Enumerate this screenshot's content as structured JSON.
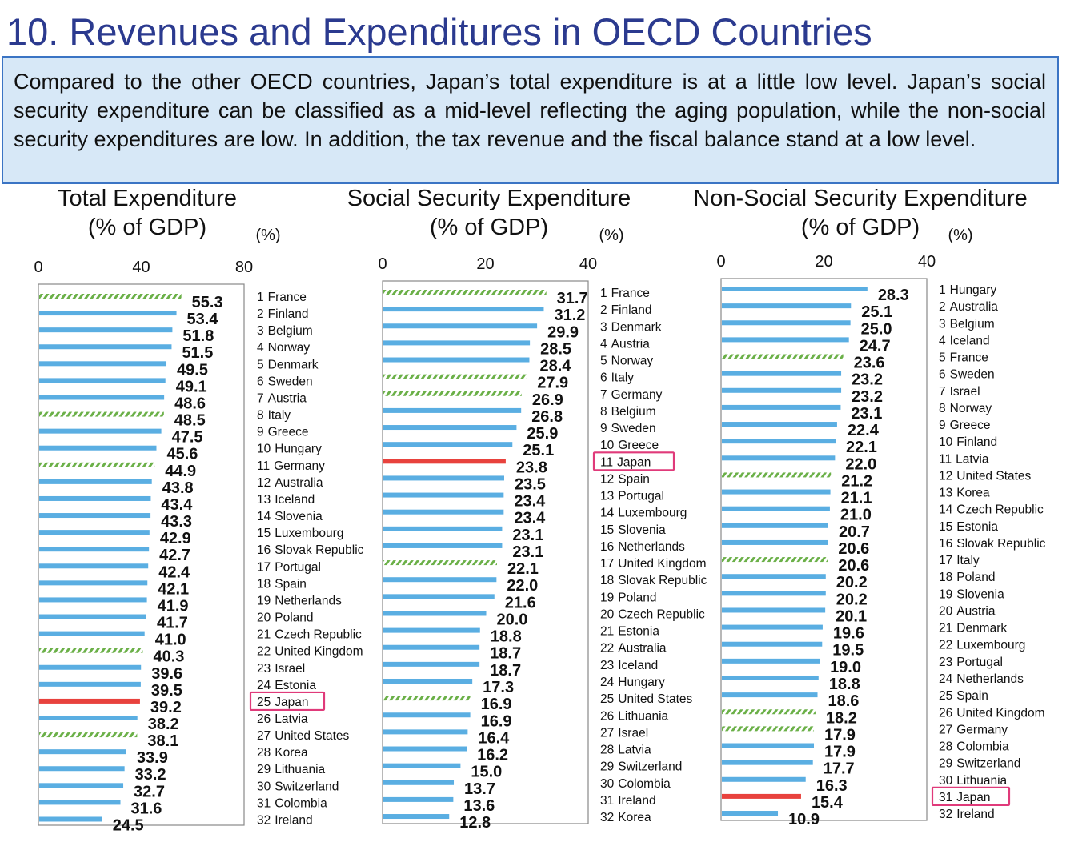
{
  "page_title": "10. Revenues and Expenditures in OECD Countries",
  "summary": "Compared to the other OECD countries, Japan’s total expenditure is at a little low level. Japan’s social security expenditure can be classified as a mid-level reflecting the aging population, while the non-social security expenditures are low. In addition, the tax revenue and the fiscal balance stand at a low level.",
  "colors": {
    "bar": "#5aaee2",
    "japan": "#e8423d",
    "hatch": "#6bb048",
    "highlight_box": "#e03a7a",
    "title": "#2b3a8f"
  },
  "chart_data": [
    {
      "type": "bar",
      "orientation": "horizontal",
      "title_line1": "Total Expenditure",
      "title_line2": "(% of GDP)",
      "unit": "(%)",
      "xlim": [
        0,
        80
      ],
      "ticks": [
        "0",
        "40",
        "80"
      ],
      "highlight": "Japan",
      "rows": [
        {
          "rank": "1",
          "country": "France",
          "value": "55.3",
          "hatched": true
        },
        {
          "rank": "2",
          "country": "Finland",
          "value": "53.4",
          "hatched": false
        },
        {
          "rank": "3",
          "country": "Belgium",
          "value": "51.8",
          "hatched": false
        },
        {
          "rank": "4",
          "country": "Norway",
          "value": "51.5",
          "hatched": false
        },
        {
          "rank": "5",
          "country": "Denmark",
          "value": "49.5",
          "hatched": false
        },
        {
          "rank": "6",
          "country": "Sweden",
          "value": "49.1",
          "hatched": false
        },
        {
          "rank": "7",
          "country": "Austria",
          "value": "48.6",
          "hatched": false
        },
        {
          "rank": "8",
          "country": "Italy",
          "value": "48.5",
          "hatched": true
        },
        {
          "rank": "9",
          "country": "Greece",
          "value": "47.5",
          "hatched": false
        },
        {
          "rank": "10",
          "country": "Hungary",
          "value": "45.6",
          "hatched": false
        },
        {
          "rank": "11",
          "country": "Germany",
          "value": "44.9",
          "hatched": true
        },
        {
          "rank": "12",
          "country": "Australia",
          "value": "43.8",
          "hatched": false
        },
        {
          "rank": "13",
          "country": "Iceland",
          "value": "43.4",
          "hatched": false
        },
        {
          "rank": "14",
          "country": "Slovenia",
          "value": "43.3",
          "hatched": false
        },
        {
          "rank": "15",
          "country": "Luxembourg",
          "value": "42.9",
          "hatched": false
        },
        {
          "rank": "16",
          "country": "Slovak Republic",
          "value": "42.7",
          "hatched": false
        },
        {
          "rank": "17",
          "country": "Portugal",
          "value": "42.4",
          "hatched": false
        },
        {
          "rank": "18",
          "country": "Spain",
          "value": "42.1",
          "hatched": false
        },
        {
          "rank": "19",
          "country": "Netherlands",
          "value": "41.9",
          "hatched": false
        },
        {
          "rank": "20",
          "country": "Poland",
          "value": "41.7",
          "hatched": false
        },
        {
          "rank": "21",
          "country": "Czech Republic",
          "value": "41.0",
          "hatched": false
        },
        {
          "rank": "22",
          "country": "United Kingdom",
          "value": "40.3",
          "hatched": true
        },
        {
          "rank": "23",
          "country": "Israel",
          "value": "39.6",
          "hatched": false
        },
        {
          "rank": "24",
          "country": "Estonia",
          "value": "39.5",
          "hatched": false
        },
        {
          "rank": "25",
          "country": "Japan",
          "value": "39.2",
          "hatched": false
        },
        {
          "rank": "26",
          "country": "Latvia",
          "value": "38.2",
          "hatched": false
        },
        {
          "rank": "27",
          "country": "United States",
          "value": "38.1",
          "hatched": true
        },
        {
          "rank": "28",
          "country": "Korea",
          "value": "33.9",
          "hatched": false
        },
        {
          "rank": "29",
          "country": "Lithuania",
          "value": "33.2",
          "hatched": false
        },
        {
          "rank": "30",
          "country": "Switzerland",
          "value": "32.7",
          "hatched": false
        },
        {
          "rank": "31",
          "country": "Colombia",
          "value": "31.6",
          "hatched": false
        },
        {
          "rank": "32",
          "country": "Ireland",
          "value": "24.5",
          "hatched": false
        }
      ]
    },
    {
      "type": "bar",
      "orientation": "horizontal",
      "title_line1": "Social Security Expenditure",
      "title_line2": "(% of GDP)",
      "unit": "(%)",
      "xlim": [
        0,
        40
      ],
      "ticks": [
        "0",
        "20",
        "40"
      ],
      "highlight": "Japan",
      "rows": [
        {
          "rank": "1",
          "country": "France",
          "value": "31.7",
          "hatched": true
        },
        {
          "rank": "2",
          "country": "Finland",
          "value": "31.2",
          "hatched": false
        },
        {
          "rank": "3",
          "country": "Denmark",
          "value": "29.9",
          "hatched": false
        },
        {
          "rank": "4",
          "country": "Austria",
          "value": "28.5",
          "hatched": false
        },
        {
          "rank": "5",
          "country": "Norway",
          "value": "28.4",
          "hatched": false
        },
        {
          "rank": "6",
          "country": "Italy",
          "value": "27.9",
          "hatched": true
        },
        {
          "rank": "7",
          "country": "Germany",
          "value": "26.9",
          "hatched": true
        },
        {
          "rank": "8",
          "country": "Belgium",
          "value": "26.8",
          "hatched": false
        },
        {
          "rank": "9",
          "country": "Sweden",
          "value": "25.9",
          "hatched": false
        },
        {
          "rank": "10",
          "country": "Greece",
          "value": "25.1",
          "hatched": false
        },
        {
          "rank": "11",
          "country": "Japan",
          "value": "23.8",
          "hatched": false
        },
        {
          "rank": "12",
          "country": "Spain",
          "value": "23.5",
          "hatched": false
        },
        {
          "rank": "13",
          "country": "Portugal",
          "value": "23.4",
          "hatched": false
        },
        {
          "rank": "14",
          "country": "Luxembourg",
          "value": "23.4",
          "hatched": false
        },
        {
          "rank": "15",
          "country": "Slovenia",
          "value": "23.1",
          "hatched": false
        },
        {
          "rank": "16",
          "country": "Netherlands",
          "value": "23.1",
          "hatched": false
        },
        {
          "rank": "17",
          "country": "United Kingdom",
          "value": "22.1",
          "hatched": true
        },
        {
          "rank": "18",
          "country": "Slovak Republic",
          "value": "22.0",
          "hatched": false
        },
        {
          "rank": "19",
          "country": "Poland",
          "value": "21.6",
          "hatched": false
        },
        {
          "rank": "20",
          "country": "Czech Republic",
          "value": "20.0",
          "hatched": false
        },
        {
          "rank": "21",
          "country": "Estonia",
          "value": "18.8",
          "hatched": false
        },
        {
          "rank": "22",
          "country": "Australia",
          "value": "18.7",
          "hatched": false
        },
        {
          "rank": "23",
          "country": "Iceland",
          "value": "18.7",
          "hatched": false
        },
        {
          "rank": "24",
          "country": "Hungary",
          "value": "17.3",
          "hatched": false
        },
        {
          "rank": "25",
          "country": "United States",
          "value": "16.9",
          "hatched": true
        },
        {
          "rank": "26",
          "country": "Lithuania",
          "value": "16.9",
          "hatched": false
        },
        {
          "rank": "27",
          "country": "Israel",
          "value": "16.4",
          "hatched": false
        },
        {
          "rank": "28",
          "country": "Latvia",
          "value": "16.2",
          "hatched": false
        },
        {
          "rank": "29",
          "country": "Switzerland",
          "value": "15.0",
          "hatched": false
        },
        {
          "rank": "30",
          "country": "Colombia",
          "value": "13.7",
          "hatched": false
        },
        {
          "rank": "31",
          "country": "Ireland",
          "value": "13.6",
          "hatched": false
        },
        {
          "rank": "32",
          "country": "Korea",
          "value": "12.8",
          "hatched": false
        }
      ]
    },
    {
      "type": "bar",
      "orientation": "horizontal",
      "title_line1": "Non-Social Security Expenditure",
      "title_line2": "(% of GDP)",
      "unit": "(%)",
      "xlim": [
        0,
        40
      ],
      "ticks": [
        "0",
        "20",
        "40"
      ],
      "highlight": "Japan",
      "rows": [
        {
          "rank": "1",
          "country": "Hungary",
          "value": "28.3",
          "hatched": false
        },
        {
          "rank": "2",
          "country": "Australia",
          "value": "25.1",
          "hatched": false
        },
        {
          "rank": "3",
          "country": "Belgium",
          "value": "25.0",
          "hatched": false
        },
        {
          "rank": "4",
          "country": "Iceland",
          "value": "24.7",
          "hatched": false
        },
        {
          "rank": "5",
          "country": "France",
          "value": "23.6",
          "hatched": true
        },
        {
          "rank": "6",
          "country": "Sweden",
          "value": "23.2",
          "hatched": false
        },
        {
          "rank": "7",
          "country": "Israel",
          "value": "23.2",
          "hatched": false
        },
        {
          "rank": "8",
          "country": "Norway",
          "value": "23.1",
          "hatched": false
        },
        {
          "rank": "9",
          "country": "Greece",
          "value": "22.4",
          "hatched": false
        },
        {
          "rank": "10",
          "country": "Finland",
          "value": "22.1",
          "hatched": false
        },
        {
          "rank": "11",
          "country": "Latvia",
          "value": "22.0",
          "hatched": false
        },
        {
          "rank": "12",
          "country": "United States",
          "value": "21.2",
          "hatched": true
        },
        {
          "rank": "13",
          "country": "Korea",
          "value": "21.1",
          "hatched": false
        },
        {
          "rank": "14",
          "country": "Czech Republic",
          "value": "21.0",
          "hatched": false
        },
        {
          "rank": "15",
          "country": "Estonia",
          "value": "20.7",
          "hatched": false
        },
        {
          "rank": "16",
          "country": "Slovak Republic",
          "value": "20.6",
          "hatched": false
        },
        {
          "rank": "17",
          "country": "Italy",
          "value": "20.6",
          "hatched": true
        },
        {
          "rank": "18",
          "country": "Poland",
          "value": "20.2",
          "hatched": false
        },
        {
          "rank": "19",
          "country": "Slovenia",
          "value": "20.2",
          "hatched": false
        },
        {
          "rank": "20",
          "country": "Austria",
          "value": "20.1",
          "hatched": false
        },
        {
          "rank": "21",
          "country": "Denmark",
          "value": "19.6",
          "hatched": false
        },
        {
          "rank": "22",
          "country": "Luxembourg",
          "value": "19.5",
          "hatched": false
        },
        {
          "rank": "23",
          "country": "Portugal",
          "value": "19.0",
          "hatched": false
        },
        {
          "rank": "24",
          "country": "Netherlands",
          "value": "18.8",
          "hatched": false
        },
        {
          "rank": "25",
          "country": "Spain",
          "value": "18.6",
          "hatched": false
        },
        {
          "rank": "26",
          "country": "United Kingdom",
          "value": "18.2",
          "hatched": true
        },
        {
          "rank": "27",
          "country": "Germany",
          "value": "17.9",
          "hatched": true
        },
        {
          "rank": "28",
          "country": "Colombia",
          "value": "17.9",
          "hatched": false
        },
        {
          "rank": "29",
          "country": "Switzerland",
          "value": "17.7",
          "hatched": false
        },
        {
          "rank": "30",
          "country": "Lithuania",
          "value": "16.3",
          "hatched": false
        },
        {
          "rank": "31",
          "country": "Japan",
          "value": "15.4",
          "hatched": false
        },
        {
          "rank": "32",
          "country": "Ireland",
          "value": "10.9",
          "hatched": false
        }
      ]
    }
  ]
}
